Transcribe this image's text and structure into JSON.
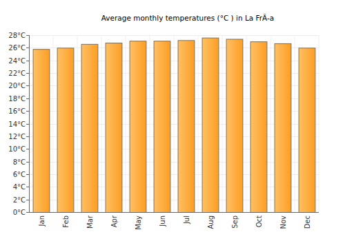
{
  "chart_data": {
    "type": "bar",
    "title": "Average monthly temperatures (°C ) in La FrÃ-a",
    "categories": [
      "Jan",
      "Feb",
      "Mar",
      "Apr",
      "May",
      "Jun",
      "Jul",
      "Aug",
      "Sep",
      "Oct",
      "Nov",
      "Dec"
    ],
    "values": [
      25.8,
      26.0,
      26.6,
      26.8,
      27.1,
      27.1,
      27.2,
      27.6,
      27.4,
      27.0,
      26.7,
      26.0
    ],
    "color": "#fdaa2f",
    "ylim": [
      0,
      28
    ],
    "yticks": [
      {
        "value": 0,
        "label": "0°C"
      },
      {
        "value": 2,
        "label": "2°C"
      },
      {
        "value": 4,
        "label": "4°C"
      },
      {
        "value": 6,
        "label": "6°C"
      },
      {
        "value": 8,
        "label": "8°C"
      },
      {
        "value": 10,
        "label": "10°C"
      },
      {
        "value": 12,
        "label": "12°C"
      },
      {
        "value": 14,
        "label": "14°C"
      },
      {
        "value": 16,
        "label": "16°C"
      },
      {
        "value": 18,
        "label": "18°C"
      },
      {
        "value": 20,
        "label": "20°C"
      },
      {
        "value": 22,
        "label": "22°C"
      },
      {
        "value": 24,
        "label": "24°C"
      },
      {
        "value": 26,
        "label": "26°C"
      },
      {
        "value": 28,
        "label": "28°C"
      }
    ],
    "grid": true
  }
}
